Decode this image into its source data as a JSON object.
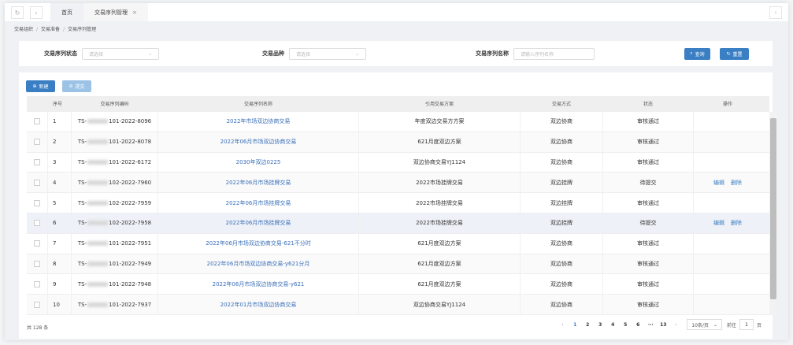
{
  "tabs": {
    "home": "首页",
    "active": "交易序列管理",
    "close": "×"
  },
  "breadcrumb": [
    "交易组织",
    "交易准备",
    "交易序列管理"
  ],
  "filters": {
    "status_label": "交易序列状态",
    "status_placeholder": "请选择",
    "variety_label": "交易品种",
    "variety_placeholder": "请选择",
    "name_label": "交易序列名称",
    "name_placeholder": "请输入序列名称",
    "search": "查询",
    "reset": "重置"
  },
  "toolbar": {
    "new": "新建",
    "submit": "提交"
  },
  "table": {
    "headers": [
      "序号",
      "交易序列编码",
      "交易序列名称",
      "引用交易方案",
      "交易方式",
      "状态",
      "操作"
    ],
    "rows": [
      {
        "no": "1",
        "code_prefix": "TS-",
        "code_suffix": "101-2022-8096",
        "name": "2022年市场双边协商交易",
        "plan": "年度双边交易方方案",
        "mode": "双边协商",
        "status": "审核通过",
        "actions": []
      },
      {
        "no": "2",
        "code_prefix": "TS-",
        "code_suffix": "101-2022-8078",
        "name": "2022年06月市场双边协商交易",
        "plan": "621月度双边方案",
        "mode": "双边协商",
        "status": "审核通过",
        "actions": []
      },
      {
        "no": "3",
        "code_prefix": "TS-",
        "code_suffix": "101-2022-6172",
        "name": "2030年双边0225",
        "plan": "双边协商交易YJ1124",
        "mode": "双边协商",
        "status": "审核通过",
        "actions": []
      },
      {
        "no": "4",
        "code_prefix": "TS-",
        "code_suffix": "102-2022-7960",
        "name": "2022年06月市场挂牌交易",
        "plan": "2022市场挂牌交易",
        "mode": "双边挂牌",
        "status": "待提交",
        "actions": [
          "编辑",
          "删除"
        ]
      },
      {
        "no": "5",
        "code_prefix": "TS-",
        "code_suffix": "102-2022-7959",
        "name": "2022年06月市场挂牌交易",
        "plan": "2022市场挂牌交易",
        "mode": "双边挂牌",
        "status": "审核通过",
        "actions": []
      },
      {
        "no": "6",
        "code_prefix": "TS-",
        "code_suffix": "102-2022-7958",
        "name": "2022年06月市场挂牌交易",
        "plan": "2022市场挂牌交易",
        "mode": "双边挂牌",
        "status": "待提交",
        "actions": [
          "编辑",
          "删除"
        ]
      },
      {
        "no": "7",
        "code_prefix": "TS-",
        "code_suffix": "101-2022-7951",
        "name": "2022年06月市场双边协商交易-621不分时",
        "plan": "621月度双边方案",
        "mode": "双边协商",
        "status": "审核通过",
        "actions": []
      },
      {
        "no": "8",
        "code_prefix": "TS-",
        "code_suffix": "101-2022-7949",
        "name": "2022年06月市场双边协商交易-y621分月",
        "plan": "621月度双边方案",
        "mode": "双边协商",
        "status": "审核通过",
        "actions": []
      },
      {
        "no": "9",
        "code_prefix": "TS-",
        "code_suffix": "101-2022-7948",
        "name": "2022年06月市场双边协商交易-y621",
        "plan": "621月度双边方案",
        "mode": "双边协商",
        "status": "审核通过",
        "actions": []
      },
      {
        "no": "10",
        "code_prefix": "TS-",
        "code_suffix": "101-2022-7937",
        "name": "2022年01月市场双边协商交易",
        "plan": "双边协商交易YJ1124",
        "mode": "双边协商",
        "status": "审核通过",
        "actions": []
      }
    ]
  },
  "footer": {
    "total": "共 128 条",
    "pages": [
      "1",
      "2",
      "3",
      "4",
      "5",
      "6",
      "···",
      "13"
    ],
    "current": "1",
    "page_size": "10条/页",
    "goto_label": "前往",
    "goto_value": "1",
    "goto_suffix": "页"
  }
}
